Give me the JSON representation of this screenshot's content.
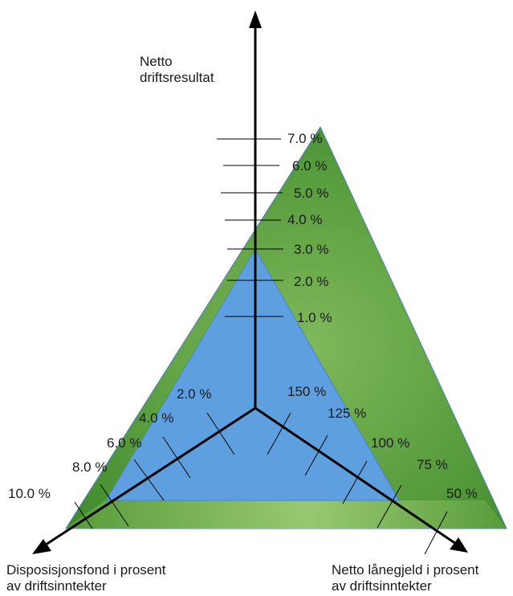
{
  "axes": {
    "top": {
      "title_lines": [
        "Netto",
        "driftsresultat"
      ],
      "ticks": [
        "7.0 %",
        "6.0 %",
        "5.0 %",
        "4.0 %",
        "3.0 %",
        "2.0 %",
        "1.0 %"
      ]
    },
    "left": {
      "title_lines": [
        "Disposisjonsfond i prosent",
        "av driftsinntekter"
      ],
      "ticks": [
        "2.0 %",
        "4.0 %",
        "6.0 %",
        "8.0 %",
        "10.0 %"
      ]
    },
    "right": {
      "title_lines": [
        "Netto lånegjeld i prosent",
        "av driftsinntekter"
      ],
      "ticks": [
        "150 %",
        "125 %",
        "100 %",
        "75 %",
        "50 %"
      ]
    }
  },
  "colors": {
    "outer_triangle": "#5a9a3a",
    "inner_triangle": "#5e9fe0",
    "axis": "#000000"
  }
}
